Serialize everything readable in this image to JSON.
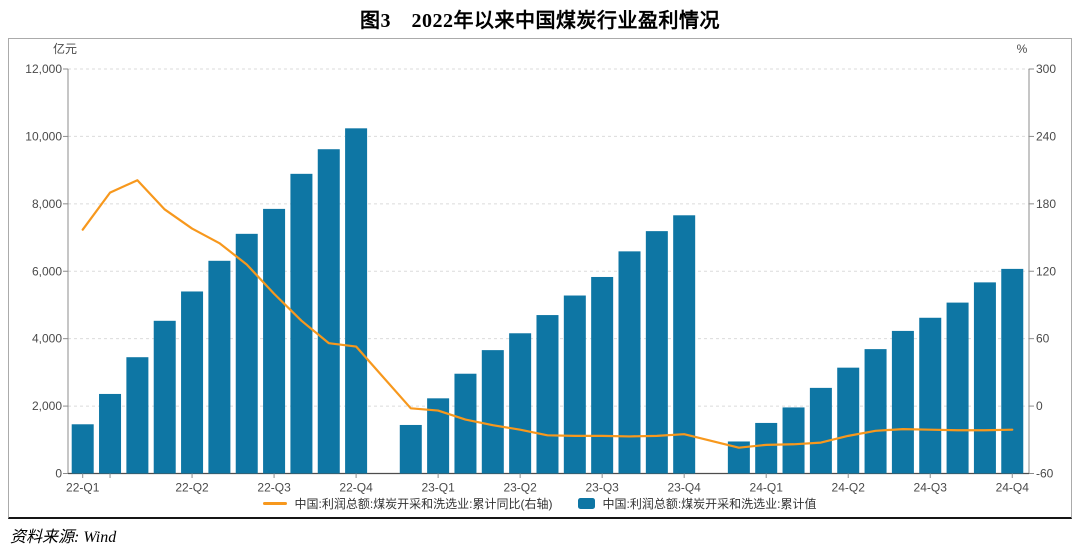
{
  "title": "图3　2022年以来中国煤炭行业盈利情况",
  "footer": {
    "source": "资料来源: Wind"
  },
  "legend": [
    {
      "type": "line",
      "color": "#F7981D",
      "label": "中国:利润总额:煤炭开采和洗选业:累计同比(右轴)"
    },
    {
      "type": "bar",
      "color": "#0E76A4",
      "label": "中国:利润总额:煤炭开采和洗选业:累计值"
    }
  ],
  "chart_data": {
    "type": "bar",
    "title": "图3 2022年以来中国煤炭行业盈利情况",
    "left_axis": {
      "unit": "亿元",
      "min": 0,
      "max": 12000,
      "tick_labels": [
        "12,000",
        "10,000",
        "8,000",
        "6,000",
        "4,000",
        "2,000",
        "0"
      ]
    },
    "right_axis": {
      "unit": "%",
      "min": -60,
      "max": 300,
      "tick_labels": [
        "300",
        "240",
        "180",
        "120",
        "60",
        "0",
        "-60"
      ]
    },
    "grid": "horizontal-dashed",
    "legend_position": "bottom",
    "x": [
      "2022-02",
      "2022-03",
      "2022-04",
      "2022-05",
      "2022-06",
      "2022-07",
      "2022-08",
      "2022-09",
      "2022-10",
      "2022-11",
      "2022-12",
      "2023-01",
      "2023-02",
      "2023-03",
      "2023-04",
      "2023-05",
      "2023-06",
      "2023-07",
      "2023-08",
      "2023-09",
      "2023-10",
      "2023-11",
      "2023-12",
      "2024-01",
      "2024-02",
      "2024-03",
      "2024-04",
      "2024-05",
      "2024-06",
      "2024-07",
      "2024-08",
      "2024-09",
      "2024-10",
      "2024-11",
      "2024-12"
    ],
    "x_ticks": [
      {
        "i": 0,
        "label": "22-Q1"
      },
      {
        "i": 1,
        "label": ""
      },
      {
        "i": 4,
        "label": "22-Q2"
      },
      {
        "i": 7,
        "label": "22-Q3"
      },
      {
        "i": 10,
        "label": "22-Q4"
      },
      {
        "i": 13,
        "label": "23-Q1"
      },
      {
        "i": 16,
        "label": "23-Q2"
      },
      {
        "i": 19,
        "label": "23-Q3"
      },
      {
        "i": 22,
        "label": "23-Q4"
      },
      {
        "i": 25,
        "label": "24-Q1"
      },
      {
        "i": 28,
        "label": "24-Q2"
      },
      {
        "i": 31,
        "label": "24-Q3"
      },
      {
        "i": 34,
        "label": "24-Q4"
      }
    ],
    "series": [
      {
        "name": "中国:利润总额:煤炭开采和洗选业:累计值",
        "type": "bar",
        "axis": "left",
        "color": "#0E76A4",
        "values": [
          1460,
          2360,
          3450,
          4530,
          5400,
          6310,
          7110,
          7850,
          8890,
          9620,
          10240,
          null,
          1440,
          2230,
          2960,
          3660,
          4160,
          4700,
          5280,
          5830,
          6590,
          7190,
          7660,
          null,
          950,
          1500,
          1960,
          2540,
          3140,
          3690,
          4230,
          4620,
          5070,
          5670,
          6070
        ]
      },
      {
        "name": "中国:利润总额:煤炭开采和洗选业:累计同比(右轴)",
        "type": "line",
        "axis": "right",
        "color": "#F7981D",
        "values": [
          157,
          190,
          201,
          175,
          158,
          145,
          126,
          100,
          76,
          56,
          53,
          null,
          -2,
          -4,
          -12,
          -17,
          -21,
          -26,
          -26.5,
          -26.5,
          -27,
          -26.5,
          -25,
          null,
          -37,
          -34.5,
          -34,
          -32.5,
          -26.5,
          -22,
          -20.5,
          -21,
          -21.5,
          -21.5,
          -21
        ]
      }
    ],
    "colors": {
      "bar": "#0E76A4",
      "line": "#F7981D",
      "grid": "#DBDBDB",
      "axis": "#8C8C8C",
      "x_axis": "#4D4D4D",
      "tick_text": "#4A4A4A"
    }
  }
}
